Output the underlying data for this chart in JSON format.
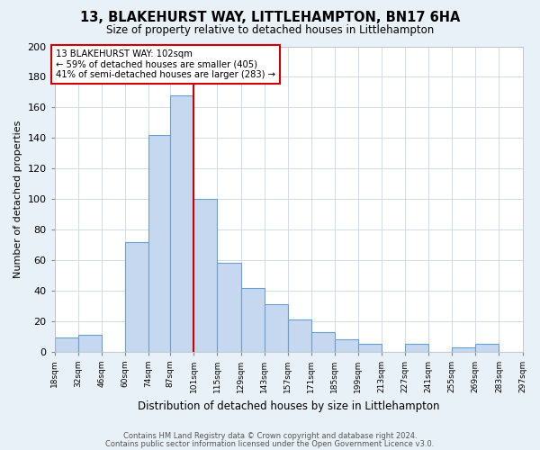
{
  "title": "13, BLAKEHURST WAY, LITTLEHAMPTON, BN17 6HA",
  "subtitle": "Size of property relative to detached houses in Littlehampton",
  "xlabel": "Distribution of detached houses by size in Littlehampton",
  "ylabel": "Number of detached properties",
  "bin_edges": [
    18,
    32,
    46,
    60,
    74,
    87,
    101,
    115,
    129,
    143,
    157,
    171,
    185,
    199,
    213,
    227,
    241,
    255,
    269,
    283,
    297
  ],
  "bar_heights": [
    9,
    11,
    0,
    72,
    142,
    168,
    100,
    58,
    42,
    31,
    21,
    13,
    8,
    5,
    0,
    5,
    0,
    3,
    5,
    0
  ],
  "bar_color": "#c5d8f0",
  "bar_edge_color": "#6aa0cd",
  "property_line_x": 101,
  "property_line_color": "#cc0000",
  "annotation_title": "13 BLAKEHURST WAY: 102sqm",
  "annotation_line1": "← 59% of detached houses are smaller (405)",
  "annotation_line2": "41% of semi-detached houses are larger (283) →",
  "annotation_box_color": "#cc0000",
  "annotation_bg": "#ffffff",
  "ylim": [
    0,
    200
  ],
  "yticks": [
    0,
    20,
    40,
    60,
    80,
    100,
    120,
    140,
    160,
    180,
    200
  ],
  "tick_labels": [
    "18sqm",
    "32sqm",
    "46sqm",
    "60sqm",
    "74sqm",
    "87sqm",
    "101sqm",
    "115sqm",
    "129sqm",
    "143sqm",
    "157sqm",
    "171sqm",
    "185sqm",
    "199sqm",
    "213sqm",
    "227sqm",
    "241sqm",
    "255sqm",
    "269sqm",
    "283sqm",
    "297sqm"
  ],
  "footer1": "Contains HM Land Registry data © Crown copyright and database right 2024.",
  "footer2": "Contains public sector information licensed under the Open Government Licence v3.0.",
  "fig_bg_color": "#e8f0f8",
  "plot_bg_color": "#ffffff",
  "grid_color": "#d0dce8"
}
